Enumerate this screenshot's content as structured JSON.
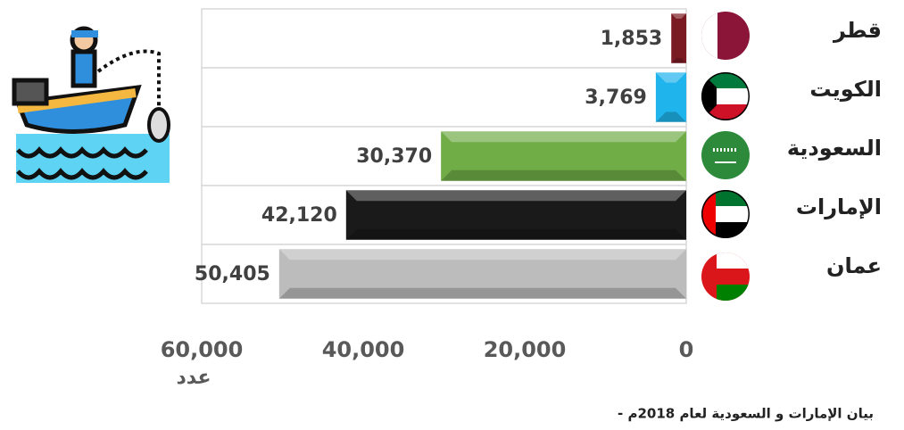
{
  "chart_data": {
    "type": "bar",
    "orientation": "horizontal",
    "categories": [
      "قطر",
      "الكويت",
      "السعودية",
      "الإمارات",
      "عمان"
    ],
    "values": [
      1853,
      3769,
      30370,
      42120,
      50405
    ],
    "value_labels": [
      "1,853",
      "3,769",
      "30,370",
      "42,120",
      "50,405"
    ],
    "colors": [
      "#7a1a22",
      "#1fb4ec",
      "#70ad47",
      "#1a1a1a",
      "#bcbcbc"
    ],
    "xlim": [
      60000,
      0
    ],
    "xticks": [
      {
        "value": 60000,
        "label": "60,000"
      },
      {
        "value": 40000,
        "label": "40,000"
      },
      {
        "value": 20000,
        "label": "20,000"
      },
      0
    ],
    "xlabel": "عدد",
    "note": "- بيان الإمارات و السعودية لعام 2018م"
  }
}
